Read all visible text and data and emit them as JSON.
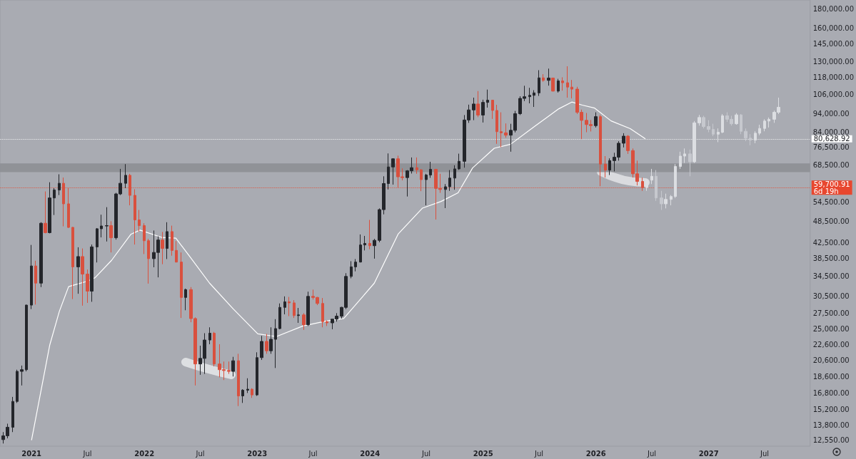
{
  "chart_data": {
    "type": "candlestick",
    "log": "y",
    "grid": false,
    "xlim": [
      "2020-09-21",
      "2027-11-25"
    ],
    "xticks": [
      {
        "value": "2021-01-01",
        "label": "2021"
      },
      {
        "value": "2021-07-01",
        "label": "Jul"
      },
      {
        "value": "2022-01-01",
        "label": "2022"
      },
      {
        "value": "2022-07-01",
        "label": "Jul"
      },
      {
        "value": "2023-01-01",
        "label": "2023"
      },
      {
        "value": "2023-07-01",
        "label": "Jul"
      },
      {
        "value": "2024-01-01",
        "label": "2024"
      },
      {
        "value": "2024-07-01",
        "label": "Jul"
      },
      {
        "value": "2025-01-01",
        "label": "2025"
      },
      {
        "value": "2025-07-01",
        "label": "Jul"
      },
      {
        "value": "2026-01-01",
        "label": "2026"
      },
      {
        "value": "2026-07-01",
        "label": "Jul"
      },
      {
        "value": "2027-01-01",
        "label": "2027"
      },
      {
        "value": "2027-07-01",
        "label": "Jul"
      }
    ],
    "ylim": [
      12100,
      190000
    ],
    "yticks": [
      {
        "value": 12550,
        "label": "12,550.00"
      },
      {
        "value": 13800,
        "label": "13,800.00"
      },
      {
        "value": 15200,
        "label": "15,200.00"
      },
      {
        "value": 16800,
        "label": "16,800.00"
      },
      {
        "value": 18600,
        "label": "18,600.00"
      },
      {
        "value": 20600,
        "label": "20,600.00"
      },
      {
        "value": 22600,
        "label": "22,600.00"
      },
      {
        "value": 25000,
        "label": "25,000.00"
      },
      {
        "value": 27500,
        "label": "27,500.00"
      },
      {
        "value": 30500,
        "label": "30,500.00"
      },
      {
        "value": 34500,
        "label": "34,500.00"
      },
      {
        "value": 38500,
        "label": "38,500.00"
      },
      {
        "value": 42500,
        "label": "42,500.00"
      },
      {
        "value": 48500,
        "label": "48,500.00"
      },
      {
        "value": 54500,
        "label": "54,500.00"
      },
      {
        "value": 68500,
        "label": "68,500.00"
      },
      {
        "value": 76500,
        "label": "76,500.00"
      },
      {
        "value": 84000,
        "label": "84,000.00"
      },
      {
        "value": 94000,
        "label": "94,000.00"
      },
      {
        "value": 106000,
        "label": "106,000.00"
      },
      {
        "value": 118000,
        "label": "118,000.00"
      },
      {
        "value": 130000,
        "label": "130,000.00"
      },
      {
        "value": 145000,
        "label": "145,000.00"
      },
      {
        "value": 160000,
        "label": "160,000.00"
      },
      {
        "value": 180000,
        "label": "180,000.00"
      }
    ],
    "bands": [
      {
        "axis": "y",
        "from": 65700,
        "to": 69300,
        "color": "#8e9096"
      }
    ],
    "ref_lines": [
      {
        "axis": "y",
        "value": 80628.92,
        "label": "80,628.92",
        "color": "#ffffff",
        "line_style": "dotted"
      },
      {
        "axis": "y",
        "value": 59700.91,
        "label": "59,700.91\n6d 19h",
        "color": "#e8472f",
        "line_style": "dotted"
      }
    ],
    "series": [
      {
        "colors": [
          "#24262b",
          "#24262b",
          "#24262b",
          "#24262b",
          "#24262b",
          "#24262b",
          "#24262b",
          "#d9503e",
          "#24262b",
          "#d9503e",
          "#24262b",
          "#24262b",
          "#24262b",
          "#d9503e",
          "#d9503e",
          "#d9503e",
          "#24262b",
          "#d9503e",
          "#d9503e",
          "#24262b",
          "#24262b",
          "#24262b",
          "#24262b",
          "#d9503e",
          "#24262b",
          "#24262b",
          "#24262b",
          "#d9503e",
          "#d9503e",
          "#d9503e",
          "#d9503e",
          "#d9503e",
          "#24262b",
          "#24262b",
          "#d9503e",
          "#24262b",
          "#d9503e",
          "#d9503e",
          "#d9503e",
          "#24262b",
          "#d9503e",
          "#d9503e",
          "#24262b",
          "#24262b",
          "#24262b",
          "#d9503e",
          "#d9503e",
          "#d9503e",
          "#d9503e",
          "#24262b",
          "#d9503e",
          "#24262b",
          "#24262b",
          "#d9503e",
          "#24262b",
          "#24262b",
          "#d9503e",
          "#24262b",
          "#24262b",
          "#24262b",
          "#24262b",
          "#d9503e",
          "#d9503e",
          "#24262b",
          "#d9503e",
          "#24262b",
          "#d9503e",
          "#d9503e",
          "#d9503e",
          "#d9503e",
          "#24262b",
          "#24262b",
          "#24262b",
          "#24262b",
          "#24262b",
          "#24262b",
          "#24262b",
          "#24262b",
          "#d9503e",
          "#24262b",
          "#24262b",
          "#24262b",
          "#24262b",
          "#24262b",
          "#d9503e",
          "#d9503e",
          "#24262b",
          "#24262b",
          "#d9503e",
          "#d9503e",
          "#24262b",
          "#24262b",
          "#d9503e",
          "#d9503e",
          "#24262b",
          "#24262b",
          "#24262b",
          "#24262b",
          "#24262b",
          "#24262b",
          "#24262b",
          "#d9503e",
          "#24262b",
          "#24262b",
          "#d9503e",
          "#d9503e",
          "#d9503e",
          "#d9503e",
          "#24262b",
          "#24262b",
          "#24262b",
          "#24262b",
          "#24262b",
          "#24262b",
          "#24262b",
          "#d9503e",
          "#24262b",
          "#d9503e",
          "#24262b",
          "#d9503e",
          "#d9503e",
          "#d9503e",
          "#d9503e",
          "#d9503e",
          "#d9503e",
          "#d9503e",
          "#24262b",
          "#d9503e",
          "#d9503e",
          "#24262b",
          "#24262b",
          "#24262b",
          "#24262b",
          "#d9503e",
          "#d9503e",
          "#d9503e",
          "#d9503e"
        ],
        "x": [
          "2020-10-01",
          "2020-10-15",
          "2020-11-01",
          "2020-11-15",
          "2020-12-01",
          "2020-12-15",
          "2021-01-01",
          "2021-01-15",
          "2021-02-01",
          "2021-02-15",
          "2021-03-01",
          "2021-03-15",
          "2021-04-01",
          "2021-04-15",
          "2021-05-01",
          "2021-05-15",
          "2021-06-01",
          "2021-06-15",
          "2021-07-01",
          "2021-07-15",
          "2021-08-01",
          "2021-08-15",
          "2021-09-01",
          "2021-09-15",
          "2021-10-01",
          "2021-10-15",
          "2021-11-01",
          "2021-11-15",
          "2021-12-01",
          "2021-12-15",
          "2022-01-01",
          "2022-01-15",
          "2022-02-01",
          "2022-02-15",
          "2022-03-01",
          "2022-03-15",
          "2022-04-01",
          "2022-04-15",
          "2022-05-01",
          "2022-05-15",
          "2022-06-01",
          "2022-06-15",
          "2022-07-01",
          "2022-07-15",
          "2022-08-01",
          "2022-08-15",
          "2022-09-01",
          "2022-09-15",
          "2022-10-01",
          "2022-10-15",
          "2022-11-01",
          "2022-11-15",
          "2022-12-01",
          "2022-12-15",
          "2023-01-01",
          "2023-01-15",
          "2023-02-01",
          "2023-02-15",
          "2023-03-01",
          "2023-03-15",
          "2023-04-01",
          "2023-04-15",
          "2023-05-01",
          "2023-05-15",
          "2023-06-01",
          "2023-06-15",
          "2023-07-01",
          "2023-07-15",
          "2023-08-01",
          "2023-08-15",
          "2023-09-01",
          "2023-09-15",
          "2023-10-01",
          "2023-10-15",
          "2023-11-01",
          "2023-11-15",
          "2023-12-01",
          "2023-12-15",
          "2024-01-01",
          "2024-01-15",
          "2024-02-01",
          "2024-02-15",
          "2024-03-01",
          "2024-03-15",
          "2024-04-01",
          "2024-04-15",
          "2024-05-01",
          "2024-05-15",
          "2024-06-01",
          "2024-06-15",
          "2024-07-01",
          "2024-07-15",
          "2024-08-01",
          "2024-08-15",
          "2024-09-01",
          "2024-09-15",
          "2024-10-01",
          "2024-10-15",
          "2024-11-01",
          "2024-11-15",
          "2024-12-01",
          "2024-12-15",
          "2025-01-01",
          "2025-01-15",
          "2025-02-01",
          "2025-02-15",
          "2025-03-01",
          "2025-03-15",
          "2025-04-01",
          "2025-04-15",
          "2025-05-01",
          "2025-05-15",
          "2025-06-01",
          "2025-06-15",
          "2025-07-01",
          "2025-07-15",
          "2025-08-01",
          "2025-08-15",
          "2025-09-01",
          "2025-09-15",
          "2025-10-01",
          "2025-10-15",
          "2025-11-01",
          "2025-11-15",
          "2025-12-01",
          "2025-12-15",
          "2026-01-01",
          "2026-01-15",
          "2026-02-01",
          "2026-02-15",
          "2026-03-01",
          "2026-03-15",
          "2026-04-01",
          "2026-04-15",
          "2026-05-01",
          "2026-05-15",
          "2026-06-01"
        ],
        "ohlc": [
          [
            12600,
            13200,
            12300,
            12900
          ],
          [
            12900,
            13900,
            12700,
            13600
          ],
          [
            13600,
            16400,
            13200,
            15950
          ],
          [
            15950,
            19400,
            15800,
            19200
          ],
          [
            19200,
            19900,
            17600,
            19400
          ],
          [
            19400,
            29000,
            19200,
            28900
          ],
          [
            28900,
            41900,
            28200,
            36800
          ],
          [
            36800,
            38000,
            29000,
            33100
          ],
          [
            33100,
            48200,
            32300,
            47900
          ],
          [
            47900,
            58300,
            45000,
            45200
          ],
          [
            45200,
            61700,
            45000,
            56000
          ],
          [
            56000,
            59500,
            50400,
            58800
          ],
          [
            58800,
            64800,
            57000,
            61300
          ],
          [
            61300,
            63500,
            47000,
            54000
          ],
          [
            54000,
            59500,
            46500,
            46700
          ],
          [
            46700,
            46800,
            30000,
            36600
          ],
          [
            36600,
            41300,
            31000,
            39000
          ],
          [
            39000,
            41000,
            28800,
            35000
          ],
          [
            35000,
            36000,
            29300,
            31500
          ],
          [
            31500,
            42000,
            29500,
            41400
          ],
          [
            41400,
            46500,
            37600,
            46300
          ],
          [
            46300,
            50500,
            43900,
            47100
          ],
          [
            47100,
            52900,
            42800,
            47200
          ],
          [
            47200,
            48500,
            40000,
            43800
          ],
          [
            43800,
            57800,
            43300,
            57400
          ],
          [
            57400,
            67000,
            57000,
            61300
          ],
          [
            61300,
            69000,
            59500,
            64400
          ],
          [
            64400,
            65000,
            53500,
            56900
          ],
          [
            56900,
            59100,
            42000,
            48900
          ],
          [
            48900,
            52000,
            45500,
            47200
          ],
          [
            47200,
            47900,
            39600,
            43000
          ],
          [
            43000,
            43500,
            33000,
            38500
          ],
          [
            38500,
            45800,
            36500,
            40000
          ],
          [
            40000,
            44200,
            34300,
            43200
          ],
          [
            43200,
            45400,
            37200,
            41000
          ],
          [
            41000,
            48200,
            38400,
            45500
          ],
          [
            45500,
            47200,
            39200,
            40500
          ],
          [
            40500,
            42900,
            37600,
            37700
          ],
          [
            37700,
            40000,
            26700,
            30300
          ],
          [
            30300,
            32000,
            28000,
            31800
          ],
          [
            31800,
            32300,
            26000,
            26600
          ],
          [
            26600,
            26800,
            17600,
            20100
          ],
          [
            20100,
            22500,
            18800,
            20800
          ],
          [
            20800,
            24300,
            18900,
            23300
          ],
          [
            23300,
            25200,
            22700,
            24300
          ],
          [
            24300,
            24500,
            19800,
            20100
          ],
          [
            20100,
            22700,
            18500,
            19400
          ],
          [
            19400,
            20400,
            18200,
            19300
          ],
          [
            19300,
            20400,
            18900,
            19200
          ],
          [
            19200,
            21000,
            18600,
            20500
          ],
          [
            20500,
            21400,
            15500,
            16500
          ],
          [
            16500,
            17200,
            15800,
            17100
          ],
          [
            17100,
            18400,
            16800,
            17200
          ],
          [
            17200,
            17300,
            16300,
            16600
          ],
          [
            16600,
            21600,
            16500,
            20900
          ],
          [
            20900,
            23900,
            20600,
            23100
          ],
          [
            23100,
            24200,
            21400,
            21800
          ],
          [
            21800,
            25200,
            21400,
            23400
          ],
          [
            23400,
            26500,
            19600,
            25000
          ],
          [
            25000,
            29200,
            24900,
            28500
          ],
          [
            28500,
            30500,
            27300,
            29500
          ],
          [
            29500,
            30400,
            27000,
            29300
          ],
          [
            29300,
            29800,
            26700,
            27100
          ],
          [
            27100,
            28400,
            25900,
            27200
          ],
          [
            27200,
            27500,
            24800,
            25600
          ],
          [
            25600,
            31400,
            25400,
            30500
          ],
          [
            30500,
            31800,
            29900,
            30300
          ],
          [
            30300,
            30400,
            28900,
            29200
          ],
          [
            29200,
            30200,
            25200,
            26100
          ],
          [
            26100,
            26300,
            25400,
            25900
          ],
          [
            25900,
            26500,
            24900,
            26500
          ],
          [
            26500,
            27500,
            26100,
            27000
          ],
          [
            27000,
            28600,
            26600,
            28500
          ],
          [
            28500,
            35200,
            28200,
            34500
          ],
          [
            34500,
            37900,
            34100,
            36600
          ],
          [
            36600,
            38400,
            35600,
            37700
          ],
          [
            37700,
            44700,
            37600,
            41900
          ],
          [
            41900,
            44300,
            40500,
            42300
          ],
          [
            42300,
            48900,
            40800,
            41700
          ],
          [
            41700,
            43500,
            38500,
            43100
          ],
          [
            43100,
            52500,
            42600,
            52100
          ],
          [
            52100,
            64000,
            50600,
            61200
          ],
          [
            61200,
            73700,
            59000,
            67800
          ],
          [
            67800,
            71500,
            60800,
            71300
          ],
          [
            71300,
            72700,
            59700,
            63800
          ],
          [
            63800,
            67200,
            62400,
            63500
          ],
          [
            63500,
            66500,
            56500,
            66200
          ],
          [
            66200,
            71900,
            65100,
            67500
          ],
          [
            67500,
            71900,
            65000,
            66600
          ],
          [
            66600,
            66900,
            58400,
            62700
          ],
          [
            62700,
            65000,
            53500,
            64500
          ],
          [
            64500,
            70000,
            63400,
            66800
          ],
          [
            66800,
            67000,
            49000,
            59400
          ],
          [
            59400,
            65000,
            57800,
            59000
          ],
          [
            59000,
            61000,
            52600,
            60000
          ],
          [
            60000,
            66500,
            58500,
            63300
          ],
          [
            63300,
            68500,
            58900,
            67000
          ],
          [
            67000,
            73600,
            66600,
            70200
          ],
          [
            70200,
            93400,
            67500,
            90600
          ],
          [
            90600,
            99600,
            89000,
            96400
          ],
          [
            96400,
            104000,
            90500,
            100000
          ],
          [
            100000,
            108300,
            92200,
            93400
          ],
          [
            93400,
            102700,
            89200,
            101000
          ],
          [
            101000,
            109300,
            97800,
            102400
          ],
          [
            102400,
            102500,
            91200,
            96100
          ],
          [
            96100,
            99500,
            78200,
            84300
          ],
          [
            84300,
            95000,
            76600,
            83700
          ],
          [
            83700,
            88700,
            81200,
            82500
          ],
          [
            82500,
            88500,
            74500,
            85000
          ],
          [
            85000,
            95800,
            83900,
            94200
          ],
          [
            94200,
            104900,
            93400,
            103500
          ],
          [
            103500,
            111900,
            101800,
            104600
          ],
          [
            104600,
            110500,
            100400,
            105500
          ],
          [
            105500,
            108900,
            98200,
            107100
          ],
          [
            107100,
            123200,
            105100,
            117500
          ],
          [
            117500,
            120200,
            114700,
            115700
          ],
          [
            115700,
            124400,
            112000,
            117400
          ],
          [
            117400,
            117600,
            108000,
            108300
          ],
          [
            108300,
            116800,
            107300,
            115300
          ],
          [
            115300,
            117900,
            108600,
            114000
          ],
          [
            114000,
            126200,
            104000,
            111000
          ],
          [
            111000,
            116000,
            103500,
            109600
          ],
          [
            109600,
            111200,
            94000,
            95000
          ],
          [
            95000,
            96600,
            80500,
            90400
          ],
          [
            90400,
            94600,
            84000,
            88100
          ],
          [
            88100,
            90600,
            84400,
            87500
          ],
          [
            87500,
            95000,
            86500,
            92500
          ],
          [
            92500,
            93500,
            60200,
            69000
          ],
          [
            69000,
            72500,
            63500,
            66500
          ],
          [
            66500,
            71500,
            64500,
            70500
          ],
          [
            70500,
            74000,
            66000,
            72000
          ],
          [
            72000,
            79500,
            70500,
            78500
          ],
          [
            78500,
            83500,
            76500,
            82000
          ],
          [
            82000,
            82500,
            73500,
            75000
          ],
          [
            75000,
            76000,
            63500,
            65000
          ],
          [
            65000,
            70500,
            60500,
            62000
          ],
          [
            62000,
            63500,
            58500,
            59700.91
          ]
        ]
      },
      {
        "colors": [
          "#dcdee2",
          "#dcdee2",
          "#c6c8ce",
          "#c6c8ce",
          "#dcdee2",
          "#dcdee2",
          "#dcdee2",
          "#dcdee2",
          "#dcdee2",
          "#c6c8ce",
          "#dcdee2",
          "#dcdee2",
          "#c6c8ce",
          "#c6c8ce",
          "#c6c8ce",
          "#dcdee2",
          "#dcdee2",
          "#c6c8ce",
          "#c6c8ce",
          "#dcdee2",
          "#c6c8ce",
          "#c6c8ce",
          "#c6c8ce",
          "#dcdee2",
          "#dcdee2",
          "#dcdee2",
          "#dcdee2",
          "#dcdee2",
          "#dcdee2"
        ],
        "x": [
          "2026-06-15",
          "2026-07-01",
          "2026-07-15",
          "2026-08-01",
          "2026-08-15",
          "2026-09-01",
          "2026-09-15",
          "2026-10-01",
          "2026-10-15",
          "2026-11-01",
          "2026-11-15",
          "2026-12-01",
          "2026-12-15",
          "2027-01-01",
          "2027-01-15",
          "2027-02-01",
          "2027-02-15",
          "2027-03-01",
          "2027-03-15",
          "2027-04-01",
          "2027-04-15",
          "2027-05-01",
          "2027-05-15",
          "2027-06-01",
          "2027-06-15",
          "2027-07-01",
          "2027-07-15",
          "2027-08-01",
          "2027-08-15"
        ],
        "ohlc": [
          [
            59700,
            63000,
            58500,
            62500
          ],
          [
            62500,
            67000,
            61000,
            64000
          ],
          [
            64000,
            66500,
            55000,
            56000
          ],
          [
            56000,
            58500,
            52000,
            54000
          ],
          [
            54000,
            57500,
            52500,
            55500
          ],
          [
            55500,
            57000,
            53500,
            56500
          ],
          [
            56500,
            69000,
            56000,
            68000
          ],
          [
            68000,
            74500,
            67000,
            72500
          ],
          [
            72500,
            76000,
            69500,
            73500
          ],
          [
            73500,
            75500,
            64000,
            70000
          ],
          [
            70000,
            90000,
            69500,
            89000
          ],
          [
            89000,
            93500,
            87500,
            92000
          ],
          [
            92000,
            93000,
            86000,
            87000
          ],
          [
            87000,
            90500,
            84000,
            85500
          ],
          [
            85500,
            88500,
            82000,
            83000
          ],
          [
            83000,
            86000,
            79000,
            84000
          ],
          [
            84000,
            94000,
            83500,
            93000
          ],
          [
            93000,
            95000,
            89500,
            91000
          ],
          [
            91000,
            93000,
            87500,
            88500
          ],
          [
            88500,
            94500,
            88000,
            93500
          ],
          [
            93500,
            94000,
            83000,
            84500
          ],
          [
            84500,
            86000,
            79500,
            81000
          ],
          [
            81000,
            83000,
            77500,
            80000
          ],
          [
            80000,
            84500,
            78500,
            83500
          ],
          [
            83500,
            88000,
            82500,
            86000
          ],
          [
            86000,
            91000,
            84500,
            90000
          ],
          [
            90000,
            92000,
            86500,
            91000
          ],
          [
            91000,
            96000,
            89000,
            95000
          ],
          [
            95000,
            104000,
            94000,
            98000
          ]
        ]
      },
      {
        "type": "line",
        "color": "#ffffff",
        "x": [
          "2021-01-01",
          "2021-03-01",
          "2021-04-01",
          "2021-05-01",
          "2021-07-01",
          "2021-07-25",
          "2021-09-17",
          "2021-11-19",
          "2021-12-18",
          "2022-02-26",
          "2022-04-13",
          "2022-05-30",
          "2022-07-31",
          "2022-10-16",
          "2023-01-03",
          "2023-03-04",
          "2023-05-29",
          "2023-08-13",
          "2023-10-08",
          "2024-01-15",
          "2024-04-01",
          "2024-06-19",
          "2024-08-18",
          "2024-10-12",
          "2024-11-28",
          "2025-02-06",
          "2025-03-31",
          "2025-06-16",
          "2025-09-03",
          "2025-10-15",
          "2025-11-18",
          "2025-12-28",
          "2026-02-19",
          "2026-04-22",
          "2026-06-10"
        ],
        "values": [
          12550,
          22600,
          27800,
          32400,
          33500,
          34200,
          38100,
          44800,
          45900,
          43900,
          43700,
          38800,
          33100,
          28200,
          24200,
          23800,
          25400,
          26200,
          26600,
          33100,
          44800,
          52600,
          54800,
          57800,
          67400,
          76100,
          78000,
          87000,
          97100,
          101200,
          99300,
          97500,
          90100,
          85900,
          80628.92
        ]
      }
    ]
  }
}
